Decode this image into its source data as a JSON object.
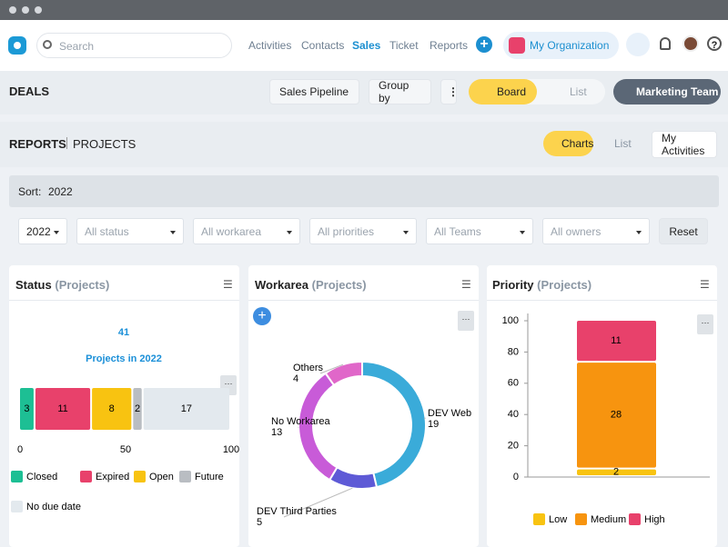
{
  "nav": {
    "search": "Search",
    "links": [
      "Activities",
      "Contacts",
      "Sales",
      "Ticket",
      "Reports"
    ],
    "organization": "My Organization"
  },
  "toolbar": {
    "title": "DEALS",
    "pipeline": "Sales Pipeline",
    "group_by": "Group by",
    "board": "Board",
    "list": "List",
    "team": "Marketing Team"
  },
  "reports": {
    "title": "REPORTS",
    "subtitle": "PROJECTS",
    "charts": "Charts",
    "list": "List",
    "activities": "My Activities"
  },
  "sort": {
    "label": "Sort:",
    "value": "2022"
  },
  "filters": [
    "2022",
    "All status",
    "All workarea",
    "All priorities",
    "All Teams",
    "All owners"
  ],
  "reset": "Reset",
  "chart_data": [
    {
      "type": "bar",
      "horizontal": true,
      "stacked": true,
      "title": "Status",
      "subtitle": "(Projects)",
      "total": 41,
      "total_caption": "Projects in 2022",
      "categories": [
        null
      ],
      "xlim": [
        0,
        100
      ],
      "xticks": [
        0,
        50,
        100
      ],
      "series": [
        {
          "name": "Closed",
          "color": "#1dbf94",
          "values": [
            7.3
          ],
          "counts": [
            3
          ]
        },
        {
          "name": "Expired",
          "color": "#e8416b",
          "values": [
            26.8
          ],
          "counts": [
            11
          ]
        },
        {
          "name": "Open",
          "color": "#f8c311",
          "values": [
            19.5
          ],
          "counts": [
            8
          ]
        },
        {
          "name": "Future",
          "color": "#b9bdc2",
          "values": [
            4.9
          ],
          "counts": [
            2
          ]
        },
        {
          "name": "No due date",
          "color": "#e3e9ee",
          "values": [
            41.5
          ],
          "counts": [
            17
          ]
        }
      ]
    },
    {
      "type": "pie",
      "donut": true,
      "title": "Workarea",
      "subtitle": "(Projects)",
      "categories": [
        "DEV Web",
        "DEV Third Parties",
        "No Workarea",
        "Others"
      ],
      "values": [
        19,
        5,
        13,
        4
      ],
      "colors": [
        "#3aabd9",
        "#5e5ad6",
        "#c85bd8",
        "#e067c9"
      ]
    },
    {
      "type": "bar",
      "horizontal": false,
      "stacked": true,
      "title": "Priority",
      "subtitle": "(Projects)",
      "categories": [
        null
      ],
      "ylim": [
        0,
        100
      ],
      "yticks": [
        0,
        20,
        40,
        60,
        80,
        100
      ],
      "series": [
        {
          "name": "Low",
          "color": "#f8c311",
          "values": [
            4.9
          ],
          "counts": [
            2
          ]
        },
        {
          "name": "Medium",
          "color": "#f7940f",
          "values": [
            68.3
          ],
          "counts": [
            28
          ]
        },
        {
          "name": "High",
          "color": "#e8416b",
          "values": [
            26.8
          ],
          "counts": [
            11
          ]
        }
      ]
    }
  ]
}
